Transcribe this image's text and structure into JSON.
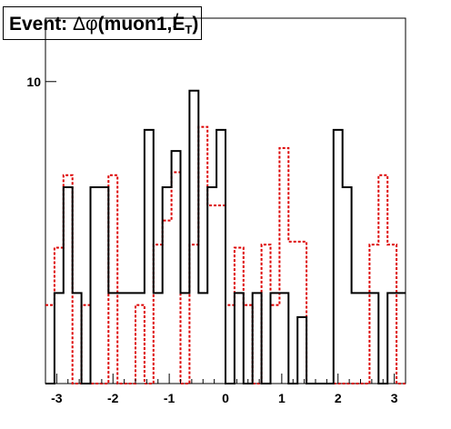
{
  "title": {
    "prefix": "Event: ",
    "symbol": "Δφ",
    "body": "(muon1,",
    "met_letter": "E",
    "met_slash": "/",
    "met_sub": "T",
    "suffix": ")"
  },
  "chart_data": {
    "type": "histogram",
    "xlim": [
      -3.2,
      3.2
    ],
    "ylim": [
      0,
      12.1
    ],
    "x_ticks": [
      -3,
      -2,
      -1,
      0,
      1,
      2,
      3
    ],
    "x_tick_labels": [
      "-3",
      "-2",
      "-1",
      "0",
      "1",
      "2",
      "3"
    ],
    "y_ticks": [
      10
    ],
    "y_tick_labels": [
      "10"
    ],
    "bins": 40,
    "series": [
      {
        "style": "solid",
        "color": "#000000",
        "values": [
          0,
          3,
          6.5,
          3,
          0,
          6.5,
          6.5,
          3,
          3,
          3,
          3,
          8.4,
          3,
          6.5,
          7.7,
          3,
          9.7,
          3,
          6.5,
          8.4,
          0,
          3,
          0,
          3,
          0,
          3,
          3,
          0,
          2.2,
          0,
          0,
          0,
          8.4,
          6.5,
          3,
          3,
          3,
          0,
          3,
          3
        ]
      },
      {
        "style": "dotted",
        "color": "#dd0000",
        "values": [
          2.6,
          4.5,
          6.9,
          0,
          2.6,
          0,
          0,
          6.9,
          0,
          0,
          2.6,
          0,
          4.6,
          5.4,
          7,
          0,
          4.6,
          8.5,
          5.9,
          5.9,
          2.6,
          4.5,
          2.6,
          0,
          4.6,
          2.6,
          7.8,
          4.7,
          4.7,
          0,
          0,
          0,
          0,
          0,
          0,
          0,
          4.6,
          6.9,
          4.6,
          0
        ]
      }
    ]
  }
}
